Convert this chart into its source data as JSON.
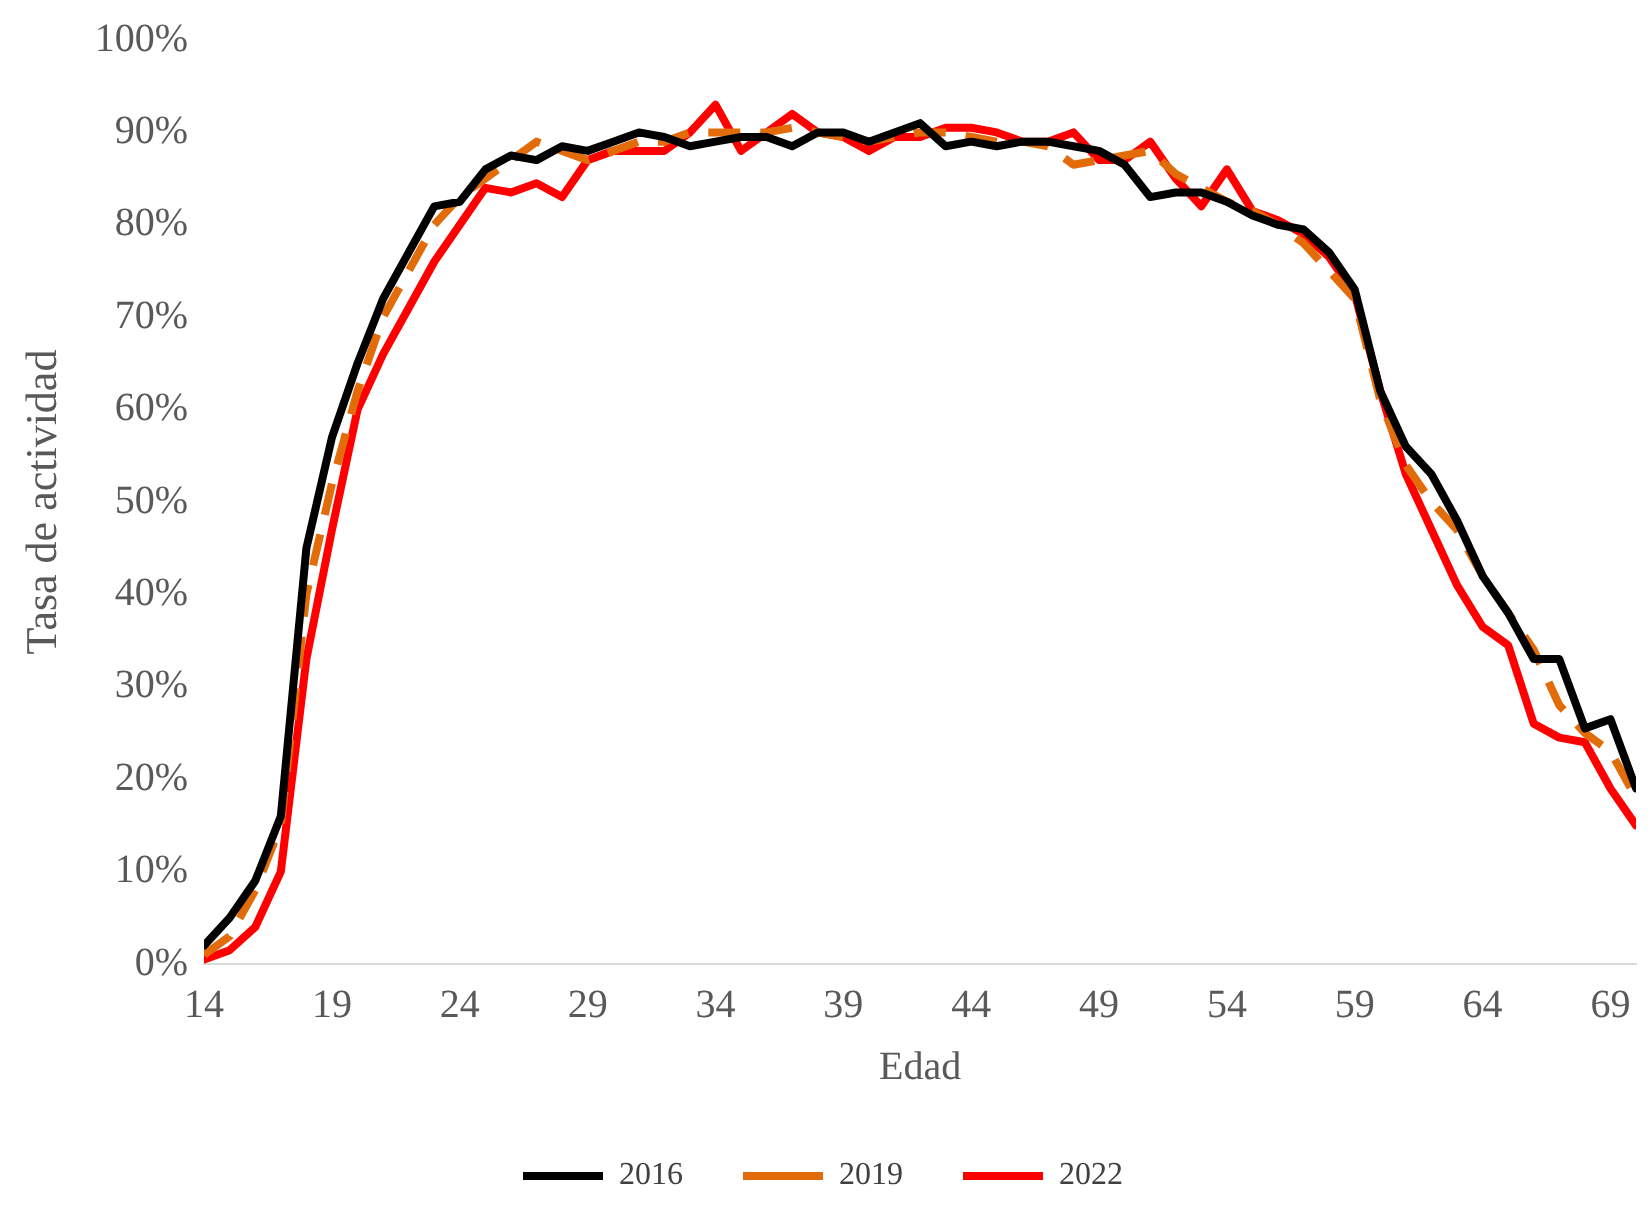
{
  "chart_data": {
    "type": "line",
    "xlabel": "Edad",
    "ylabel": "Tasa de actividad",
    "x": [
      14,
      15,
      16,
      17,
      18,
      19,
      20,
      21,
      22,
      23,
      24,
      25,
      26,
      27,
      28,
      29,
      30,
      31,
      32,
      33,
      34,
      35,
      36,
      37,
      38,
      39,
      40,
      41,
      42,
      43,
      44,
      45,
      46,
      47,
      48,
      49,
      50,
      51,
      52,
      53,
      54,
      55,
      56,
      57,
      58,
      59,
      60,
      61,
      62,
      63,
      64,
      65,
      66,
      67,
      68,
      69,
      70
    ],
    "xlim": [
      14,
      70
    ],
    "xticks": [
      14,
      19,
      24,
      29,
      34,
      39,
      44,
      49,
      54,
      59,
      64,
      69
    ],
    "ylim": [
      0,
      100
    ],
    "yticks": [
      {
        "value": 0,
        "label": "0%"
      },
      {
        "value": 10,
        "label": "10%"
      },
      {
        "value": 20,
        "label": "20%"
      },
      {
        "value": 30,
        "label": "30%"
      },
      {
        "value": 40,
        "label": "40%"
      },
      {
        "value": 50,
        "label": "50%"
      },
      {
        "value": 60,
        "label": "60%"
      },
      {
        "value": 70,
        "label": "70%"
      },
      {
        "value": 80,
        "label": "80%"
      },
      {
        "value": 90,
        "label": "90%"
      },
      {
        "value": 100,
        "label": "100%"
      }
    ],
    "grid": false,
    "legend": "bottom",
    "marker": "none",
    "series": [
      {
        "name": "2016",
        "color": "#000000",
        "line_style": "solid",
        "values": [
          2,
          5,
          9,
          16,
          45,
          57,
          65,
          72,
          77,
          82,
          82.5,
          86,
          87.5,
          87,
          88.5,
          88,
          89,
          90,
          89.5,
          88.5,
          89,
          89.5,
          89.5,
          88.5,
          90,
          90,
          89,
          90,
          91,
          88.5,
          89,
          88.5,
          89,
          89,
          88.5,
          88,
          86.5,
          83,
          83.5,
          83.5,
          82.5,
          81,
          80,
          79.5,
          77,
          73,
          62,
          56,
          53,
          48,
          42,
          38,
          33,
          33,
          25.5,
          26.5,
          19
        ]
      },
      {
        "name": "2019",
        "color": "#e36c0a",
        "line_style": "dashed",
        "values": [
          1,
          3,
          8,
          15,
          40,
          52,
          62,
          70,
          75,
          80,
          83,
          85,
          87,
          89,
          88,
          87,
          88,
          89,
          89,
          90,
          90,
          90,
          90,
          90.5,
          90,
          89.5,
          89,
          89.5,
          90,
          90,
          89.5,
          89,
          89,
          88.5,
          86.5,
          87,
          87.5,
          88,
          85.5,
          84,
          82.5,
          81.5,
          80,
          78,
          75,
          72,
          61,
          54,
          50,
          47,
          42,
          38,
          34,
          28,
          25,
          23,
          18
        ]
      },
      {
        "name": "2022",
        "color": "#ff0000",
        "line_style": "solid",
        "values": [
          0.5,
          1.5,
          4,
          10,
          33,
          47,
          60,
          66,
          71,
          76,
          80,
          84,
          83.5,
          84.5,
          83,
          87,
          88,
          88,
          88,
          90,
          93,
          88,
          90,
          92,
          90,
          89.5,
          88,
          89.5,
          89.5,
          90.5,
          90.5,
          90,
          89,
          89,
          90,
          87,
          87,
          89,
          85,
          82,
          86,
          81.5,
          80.5,
          79,
          76.5,
          72.5,
          62,
          53,
          47,
          41,
          36.5,
          34.5,
          26,
          24.5,
          24,
          19,
          15
        ]
      }
    ]
  }
}
